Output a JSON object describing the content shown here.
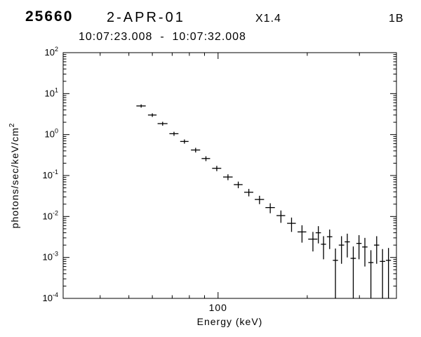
{
  "header": {
    "flare_number": "25660",
    "date": "2-APR-01",
    "goes_class": "X1.4",
    "optical_class": "1B",
    "time_range": "10:07:23.008  -  10:07:32.008"
  },
  "chart_data": {
    "type": "scatter",
    "subtype": "photon-spectrum-with-error-bars",
    "scale": "log-log",
    "title": "",
    "xlabel": "Energy (keV)",
    "ylabel": "photons/sec/keV/cm",
    "ylabel_superscript": "2",
    "xlim": [
      30,
      400
    ],
    "ylim_exponents": [
      -4,
      2
    ],
    "grid": false,
    "legend": "none",
    "x_major_ticks": [
      {
        "value": 100,
        "label": "100"
      }
    ],
    "x_minor_ticks": [
      40,
      50,
      60,
      70,
      80,
      90,
      200,
      300,
      400
    ],
    "y_tick_base": "10",
    "y_tick_exponents": [
      2,
      1,
      0,
      -1,
      -2,
      -3,
      -4
    ],
    "points": [
      {
        "e": 55,
        "w": 4,
        "v": 5.0,
        "err": 0.45
      },
      {
        "e": 60,
        "w": 4,
        "v": 3.0,
        "err": 0.3
      },
      {
        "e": 65,
        "w": 5,
        "v": 1.85,
        "err": 0.2
      },
      {
        "e": 71,
        "w": 5,
        "v": 1.05,
        "err": 0.12
      },
      {
        "e": 77,
        "w": 5,
        "v": 0.68,
        "err": 0.08
      },
      {
        "e": 84,
        "w": 6,
        "v": 0.42,
        "err": 0.055
      },
      {
        "e": 91,
        "w": 6,
        "v": 0.26,
        "err": 0.035
      },
      {
        "e": 99,
        "w": 7,
        "v": 0.15,
        "err": 0.022
      },
      {
        "e": 108,
        "w": 8,
        "v": 0.092,
        "err": 0.015
      },
      {
        "e": 117,
        "w": 8,
        "v": 0.06,
        "err": 0.011
      },
      {
        "e": 127,
        "w": 9,
        "v": 0.039,
        "err": 0.008
      },
      {
        "e": 138,
        "w": 10,
        "v": 0.026,
        "err": 0.006
      },
      {
        "e": 150,
        "w": 11,
        "v": 0.0165,
        "err": 0.0045
      },
      {
        "e": 163,
        "w": 11,
        "v": 0.0105,
        "err": 0.0035
      },
      {
        "e": 177,
        "w": 12,
        "v": 0.0068,
        "err": 0.0026
      },
      {
        "e": 192,
        "w": 13,
        "v": 0.0042,
        "err": 0.0019
      },
      {
        "e": 209,
        "w": 15,
        "v": 0.0028,
        "err": 0.0014
      },
      {
        "e": 218,
        "w": 9,
        "v": 0.004,
        "err": 0.0018
      },
      {
        "e": 227,
        "w": 9,
        "v": 0.0021,
        "err": 0.0012
      },
      {
        "e": 238,
        "w": 10,
        "v": 0.0032,
        "err": 0.0016
      },
      {
        "e": 249,
        "w": 10,
        "v": 0.00085,
        "err": 0.0008
      },
      {
        "e": 261,
        "w": 11,
        "v": 0.002,
        "err": 0.0013
      },
      {
        "e": 273,
        "w": 11,
        "v": 0.0024,
        "err": 0.0014
      },
      {
        "e": 286,
        "w": 12,
        "v": 0.00095,
        "err": 0.0009
      },
      {
        "e": 299,
        "w": 12,
        "v": 0.0022,
        "err": 0.0013
      },
      {
        "e": 313,
        "w": 13,
        "v": 0.0018,
        "err": 0.0012
      },
      {
        "e": 328,
        "w": 13,
        "v": 0.00075,
        "err": 0.00075
      },
      {
        "e": 343,
        "w": 14,
        "v": 0.002,
        "err": 0.0013
      },
      {
        "e": 359,
        "w": 15,
        "v": 0.0008,
        "err": 0.0008
      },
      {
        "e": 376,
        "w": 15,
        "v": 0.00085,
        "err": 0.00085
      }
    ]
  }
}
